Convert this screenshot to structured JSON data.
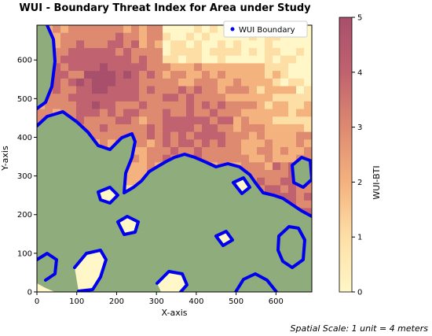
{
  "chart_data": {
    "type": "heatmap",
    "title": "WUI - Boundary Threat Index for Area under Study",
    "xlabel": "X-axis",
    "ylabel": "Y-axis",
    "xlim": [
      0,
      690
    ],
    "ylim": [
      0,
      690
    ],
    "x_ticks": [
      0,
      100,
      200,
      300,
      400,
      500,
      600
    ],
    "y_ticks": [
      0,
      100,
      200,
      300,
      400,
      500,
      600
    ],
    "legend": {
      "position": "top-right",
      "entries": [
        "WUI Boundary"
      ]
    },
    "colorbar": {
      "label": "WUI-BTI",
      "min": 0,
      "max": 5,
      "ticks": [
        0,
        1,
        2,
        3,
        4,
        5
      ],
      "colors": [
        "#fff7c7",
        "#fddfa6",
        "#f4b27e",
        "#dd8a70",
        "#c0626f",
        "#a84f6c"
      ]
    },
    "boundary_color": "#0000ee",
    "vegetation_color": "#8fac7c",
    "footnote": "Spatial Scale: 1 unit = 4 meters",
    "grid": false
  }
}
